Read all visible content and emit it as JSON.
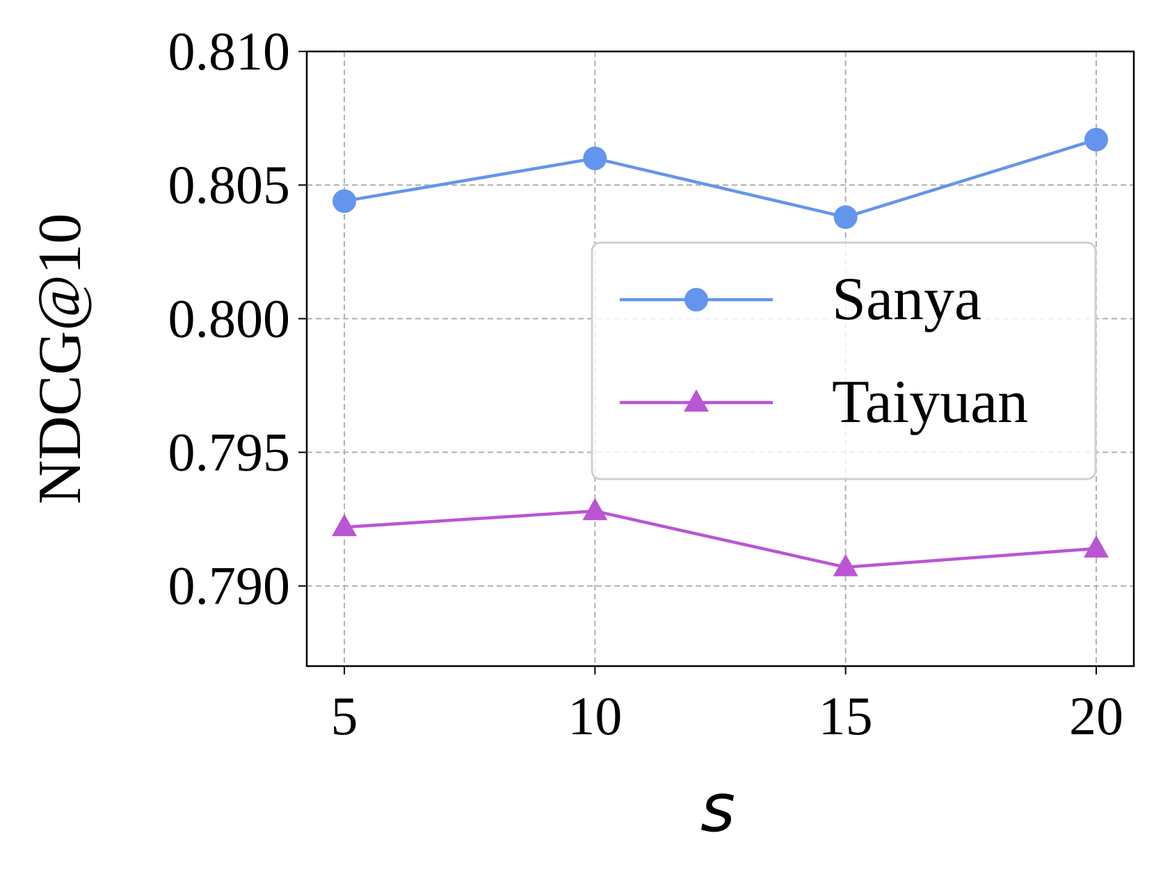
{
  "chart_data": {
    "type": "line",
    "x_label": "s",
    "y_label": "NDCG@10",
    "x": [
      5,
      10,
      15,
      20
    ],
    "series": [
      {
        "name": "Sanya",
        "color": "#6495ED",
        "marker": "circle",
        "values": [
          0.8044,
          0.806,
          0.8038,
          0.8067
        ]
      },
      {
        "name": "Taiyuan",
        "color": "#BA55D3",
        "marker": "triangle",
        "values": [
          0.7922,
          0.7928,
          0.7907,
          0.7914
        ]
      }
    ],
    "xlim": [
      4.25,
      20.75
    ],
    "xticks": [
      5,
      10,
      15,
      20
    ],
    "ylim": [
      0.787,
      0.81
    ],
    "yticks": [
      {
        "value": 0.79,
        "label": "0.790"
      },
      {
        "value": 0.795,
        "label": "0.795"
      },
      {
        "value": 0.8,
        "label": "0.800"
      },
      {
        "value": 0.805,
        "label": "0.805"
      },
      {
        "value": 0.81,
        "label": "0.810"
      }
    ],
    "grid": true,
    "legend": "right"
  }
}
